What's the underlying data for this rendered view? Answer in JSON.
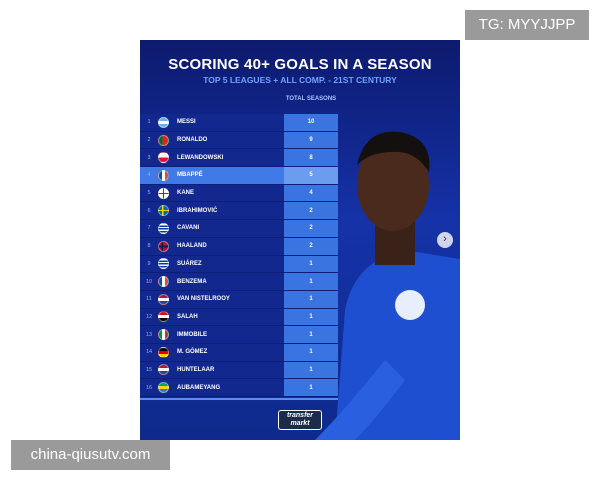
{
  "watermarks": {
    "top": "TG: MYYJJPP",
    "bottom": "china-qiusutv.com"
  },
  "infographic": {
    "title": "SCORING 40+ GOALS IN A SEASON",
    "subtitle": "TOP 5 LEAGUES + ALL COMP. - 21ST CENTURY",
    "column_header": "TOTAL SEASONS",
    "highlight_color": "#3f7ae6",
    "rows": [
      {
        "rank": "1",
        "name": "MESSI",
        "flag": "argentina",
        "value": "10"
      },
      {
        "rank": "2",
        "name": "RONALDO",
        "flag": "portugal",
        "value": "9"
      },
      {
        "rank": "3",
        "name": "LEWANDOWSKI",
        "flag": "poland",
        "value": "8"
      },
      {
        "rank": "4",
        "name": "MBAPPÉ",
        "flag": "france",
        "value": "5",
        "highlight": true
      },
      {
        "rank": "5",
        "name": "KANE",
        "flag": "england",
        "value": "4"
      },
      {
        "rank": "6",
        "name": "IBRAHIMOVIĆ",
        "flag": "sweden",
        "value": "2"
      },
      {
        "rank": "7",
        "name": "CAVANI",
        "flag": "uruguay",
        "value": "2"
      },
      {
        "rank": "8",
        "name": "HAALAND",
        "flag": "norway",
        "value": "2"
      },
      {
        "rank": "9",
        "name": "SUÁREZ",
        "flag": "uruguay",
        "value": "1"
      },
      {
        "rank": "10",
        "name": "BENZEMA",
        "flag": "france",
        "value": "1"
      },
      {
        "rank": "11",
        "name": "VAN NISTELROOY",
        "flag": "netherlands",
        "value": "1"
      },
      {
        "rank": "12",
        "name": "SALAH",
        "flag": "egypt",
        "value": "1"
      },
      {
        "rank": "13",
        "name": "IMMOBILE",
        "flag": "italy",
        "value": "1"
      },
      {
        "rank": "14",
        "name": "M. GÓMEZ",
        "flag": "germany",
        "value": "1"
      },
      {
        "rank": "15",
        "name": "HUNTELAAR",
        "flag": "netherlands",
        "value": "1"
      },
      {
        "rank": "16",
        "name": "AUBAMEYANG",
        "flag": "gabon",
        "value": "1"
      }
    ],
    "logo": "transfermarkt",
    "next_icon": "chevron-right-icon"
  }
}
